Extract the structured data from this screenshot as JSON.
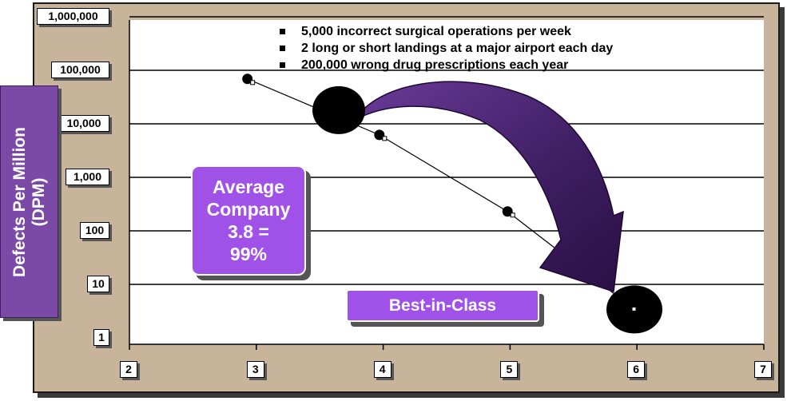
{
  "chart_data": {
    "type": "line",
    "y_scale": "log",
    "ylabel": "Defects Per Million\n(DPM)",
    "y_ticks": [
      "1",
      "10",
      "100",
      "1,000",
      "10,000",
      "100,000",
      "1,000,000"
    ],
    "x_ticks": [
      "2",
      "3",
      "4",
      "5",
      "6",
      "7"
    ],
    "xlim": [
      2,
      7
    ],
    "ylim": [
      1,
      1000000
    ],
    "grid": true,
    "series": [
      {
        "x": [
          2.93,
          3.97,
          4.98,
          5.98
        ],
        "y": [
          69000,
          6210,
          230,
          3.4
        ]
      }
    ],
    "bubbles": [
      {
        "x": 3.65,
        "y": 18000
      },
      {
        "x": 5.98,
        "y": 3.4
      }
    ],
    "notes": [
      "5,000 incorrect surgical operations per week",
      "2 long or short landings at a major airport each day",
      "200,000 wrong drug prescriptions each year"
    ],
    "callout": {
      "line1": "Average",
      "line2": "Company",
      "line3": "3.8 =",
      "line4": "99%"
    },
    "best_in_class": "Best-in-Class",
    "colors": {
      "frame": "#c8b49b",
      "callout": "#a052e8",
      "ylabel_box": "#7b4aa6",
      "arrow": "#4a1f6e"
    }
  }
}
